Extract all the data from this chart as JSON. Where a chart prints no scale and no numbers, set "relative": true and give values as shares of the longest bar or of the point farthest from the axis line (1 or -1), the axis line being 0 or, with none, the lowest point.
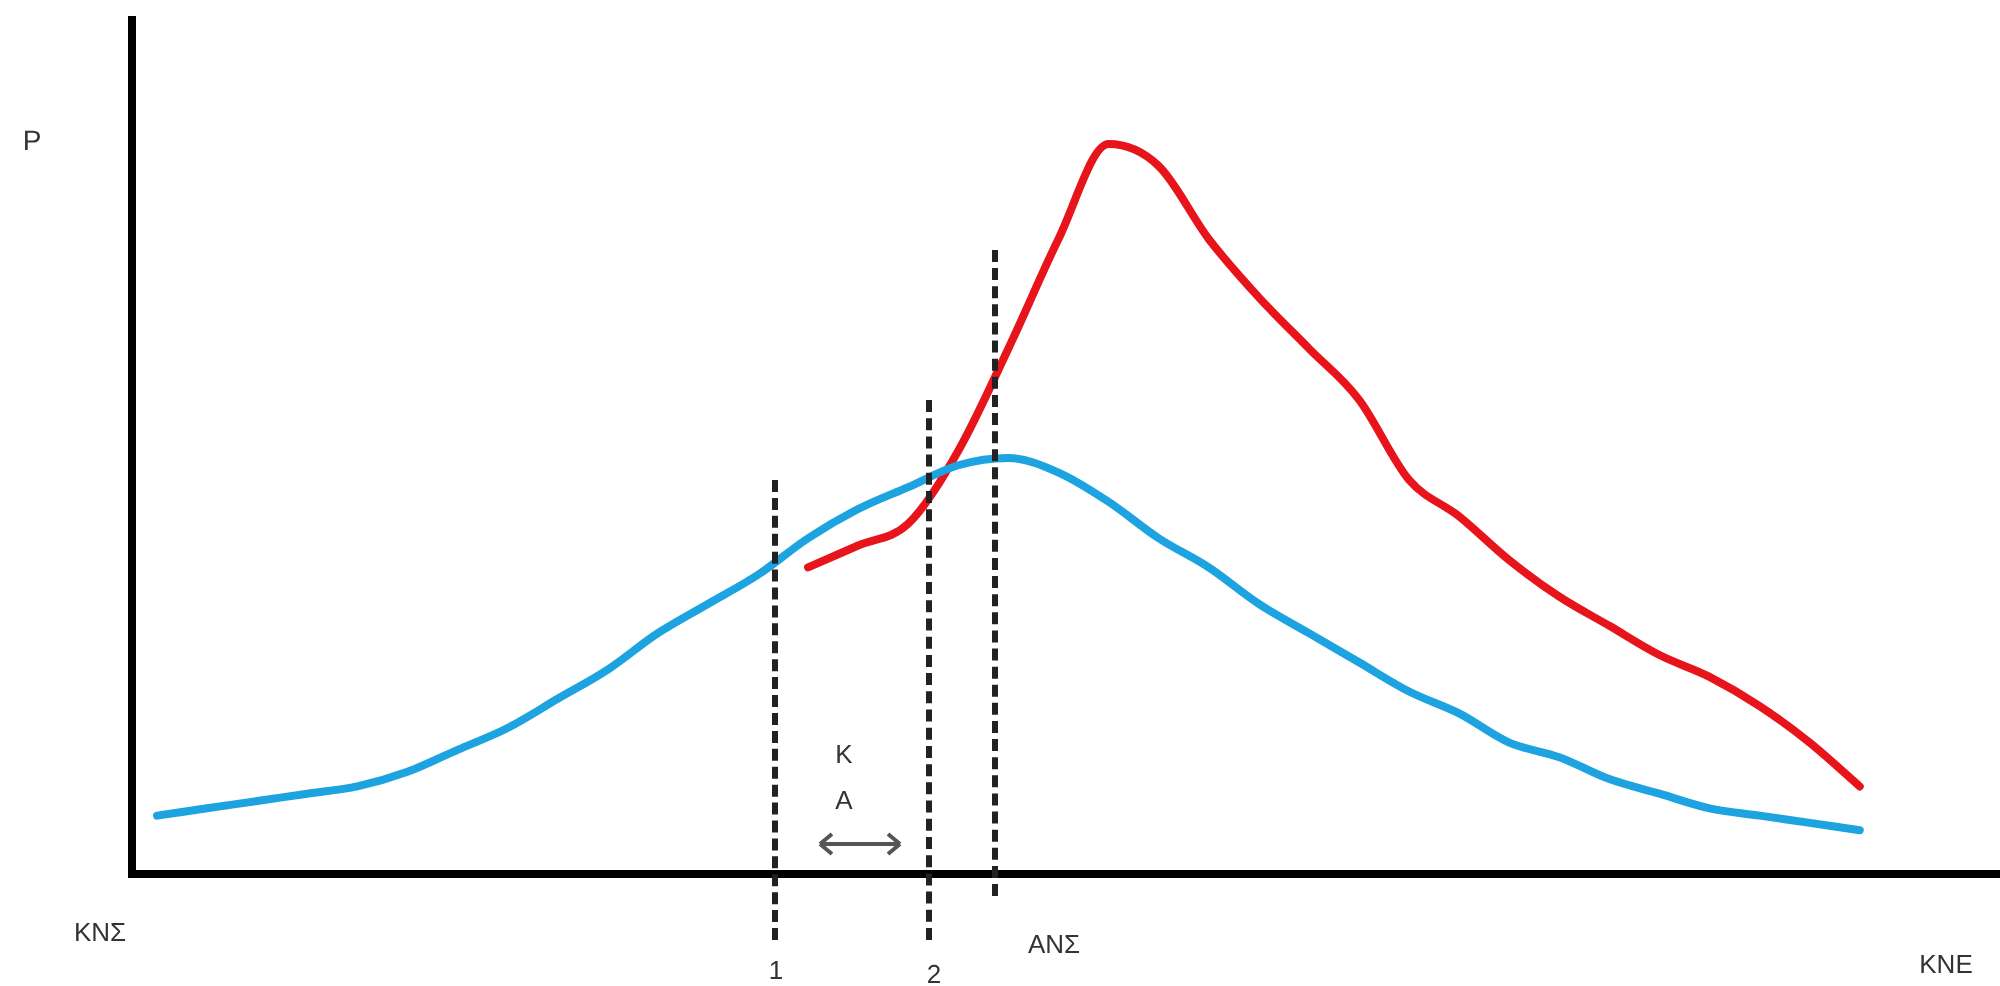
{
  "chart_data": {
    "type": "line",
    "relative": true,
    "xlabel": "ΚΝΕ",
    "ylabel": "P",
    "categories": [
      null,
      null,
      null,
      null,
      null,
      null,
      null,
      null,
      null,
      null,
      null,
      null,
      null,
      null,
      null,
      null,
      null,
      null,
      null,
      null,
      null,
      null,
      null,
      null,
      null,
      null,
      null,
      null,
      null,
      null,
      null,
      null,
      null,
      null,
      null
    ],
    "series": [
      {
        "color": "#1ca3e0",
        "values": [
          0.08,
          0.09,
          0.1,
          0.11,
          0.12,
          0.14,
          0.17,
          0.2,
          0.24,
          0.28,
          0.33,
          0.37,
          0.41,
          0.46,
          0.5,
          0.53,
          0.56,
          0.57,
          0.55,
          0.51,
          0.46,
          0.42,
          0.37,
          0.33,
          0.29,
          0.25,
          0.22,
          0.18,
          0.16,
          0.13,
          0.11,
          0.09,
          0.08,
          0.07,
          0.06
        ]
      },
      {
        "color": "#e8141c",
        "values": [
          null,
          null,
          null,
          null,
          null,
          null,
          null,
          null,
          null,
          null,
          null,
          null,
          null,
          0.42,
          0.45,
          0.48,
          0.58,
          0.72,
          0.87,
          1.0,
          0.97,
          0.87,
          0.79,
          0.72,
          0.65,
          0.54,
          0.49,
          0.43,
          0.38,
          0.34,
          0.3,
          0.27,
          0.23,
          0.18,
          0.12
        ]
      }
    ],
    "annotations": [
      "ΚΝΣ",
      "1",
      "2",
      "ΑΝΣ",
      "Κ",
      "Α"
    ],
    "legend": false,
    "grid": false,
    "marker": "none",
    "line_style": "solid"
  }
}
